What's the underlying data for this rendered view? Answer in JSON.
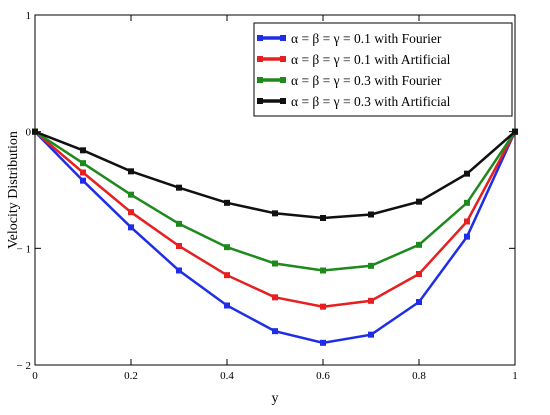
{
  "chart_data": {
    "type": "line",
    "xlabel": "y",
    "ylabel": "Velocity  Distribution",
    "xlim": [
      0,
      1
    ],
    "ylim": [
      -2,
      1
    ],
    "x": [
      0,
      0.1,
      0.2,
      0.3,
      0.4,
      0.5,
      0.6,
      0.7,
      0.8,
      0.9,
      1.0
    ],
    "x_ticks": [
      {
        "value": 0,
        "label": "0"
      },
      {
        "value": 0.2,
        "label": "0.2"
      },
      {
        "value": 0.4,
        "label": "0.4"
      },
      {
        "value": 0.6,
        "label": "0.6"
      },
      {
        "value": 0.8,
        "label": "0.8"
      },
      {
        "value": 1,
        "label": "1"
      }
    ],
    "y_ticks": [
      {
        "value": -2,
        "label": "− 2"
      },
      {
        "value": -1,
        "label": "− 1"
      },
      {
        "value": 0,
        "label": "0"
      },
      {
        "value": 1,
        "label": "1"
      }
    ],
    "grid": false,
    "legend_position": "top-right",
    "series": [
      {
        "name": "α = β = γ = 0.1 with Fourier",
        "color": "#1f2ee6",
        "values": [
          0,
          -0.42,
          -0.82,
          -1.19,
          -1.49,
          -1.71,
          -1.81,
          -1.74,
          -1.46,
          -0.9,
          0
        ]
      },
      {
        "name": "α = β = γ = 0.1 with Artificial",
        "color": "#e62020",
        "values": [
          0,
          -0.35,
          -0.69,
          -0.98,
          -1.23,
          -1.42,
          -1.5,
          -1.45,
          -1.22,
          -0.77,
          0
        ]
      },
      {
        "name": "α = β = γ = 0.3 with Fourier",
        "color": "#1e8a1e",
        "values": [
          0,
          -0.27,
          -0.54,
          -0.79,
          -0.99,
          -1.13,
          -1.19,
          -1.15,
          -0.97,
          -0.61,
          0
        ]
      },
      {
        "name": "α = β = γ = 0.3 with Artificial",
        "color": "#111111",
        "values": [
          0,
          -0.16,
          -0.34,
          -0.48,
          -0.61,
          -0.7,
          -0.74,
          -0.71,
          -0.6,
          -0.36,
          0
        ]
      }
    ]
  }
}
